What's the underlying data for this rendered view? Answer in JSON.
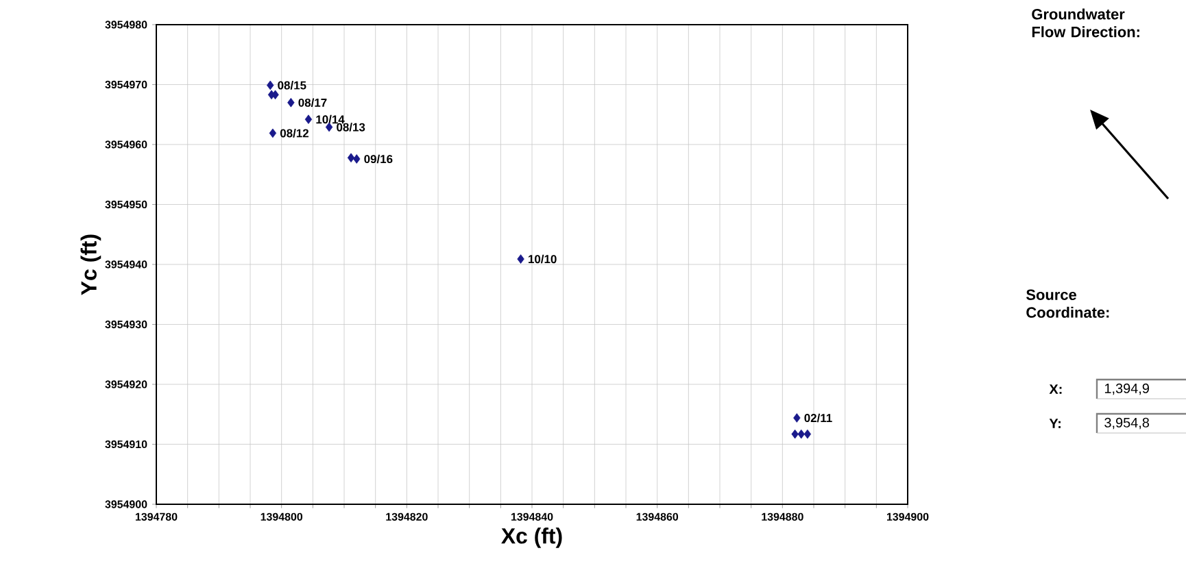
{
  "chart_data": {
    "type": "scatter",
    "xlabel": "Xc (ft)",
    "ylabel": "Yc (ft)",
    "xlim": [
      1394780,
      1394900
    ],
    "ylim": [
      3954900,
      3954980
    ],
    "xticks": [
      1394780,
      {
        "value": 1394785,
        "label": null
      },
      {
        "value": 1394790,
        "label": null
      },
      {
        "value": 1394795,
        "label": null
      },
      1394800,
      {
        "value": 1394805,
        "label": null
      },
      {
        "value": 1394810,
        "label": null
      },
      {
        "value": 1394815,
        "label": null
      },
      1394820,
      {
        "value": 1394825,
        "label": null
      },
      {
        "value": 1394830,
        "label": null
      },
      {
        "value": 1394835,
        "label": null
      },
      1394840,
      {
        "value": 1394845,
        "label": null
      },
      {
        "value": 1394850,
        "label": null
      },
      {
        "value": 1394855,
        "label": null
      },
      1394860,
      {
        "value": 1394865,
        "label": null
      },
      {
        "value": 1394870,
        "label": null
      },
      {
        "value": 1394875,
        "label": null
      },
      1394880,
      {
        "value": 1394885,
        "label": null
      },
      {
        "value": 1394890,
        "label": null
      },
      {
        "value": 1394895,
        "label": null
      },
      1394900
    ],
    "yticks": [
      3954900,
      3954910,
      3954920,
      3954930,
      3954940,
      3954950,
      3954960,
      3954970,
      3954980
    ],
    "grid": true,
    "marker": "diamond",
    "series": [
      {
        "color": "#1a1a8c",
        "x": [
          1394798.2,
          1394798.4,
          1394799.0,
          1394801.5,
          1394804.3,
          1394798.6,
          1394807.6,
          1394811.1,
          1394812.0,
          1394838.2,
          1394882.3,
          1394882.0,
          1394883.0,
          1394884.0
        ],
        "values": [
          3954969.9,
          3954968.3,
          3954968.3,
          3954967.0,
          3954964.2,
          3954961.9,
          3954962.9,
          3954957.8,
          3954957.6,
          3954940.9,
          3954914.4,
          3954911.7,
          3954911.7,
          3954911.7
        ]
      }
    ],
    "annotations": [
      {
        "text": "08/15",
        "x": 1394798.2,
        "y": 3954969.9
      },
      {
        "text": "08/17",
        "x": 1394801.5,
        "y": 3954967.0
      },
      {
        "text": "10/14",
        "x": 1394804.3,
        "y": 3954964.2
      },
      {
        "text": "08/12",
        "x": 1394798.6,
        "y": 3954961.9
      },
      {
        "text": "08/13",
        "x": 1394807.6,
        "y": 3954962.9
      },
      {
        "text": "09/16",
        "x": 1394812.0,
        "y": 3954957.6
      },
      {
        "text": "10/10",
        "x": 1394838.2,
        "y": 3954940.9
      },
      {
        "text": "02/11",
        "x": 1394882.3,
        "y": 3954914.4
      },
      "Groundwater Flow Direction:",
      "Source Coordinate:",
      "X:",
      "1,394,9",
      "Y:",
      "3,954,8"
    ]
  }
}
